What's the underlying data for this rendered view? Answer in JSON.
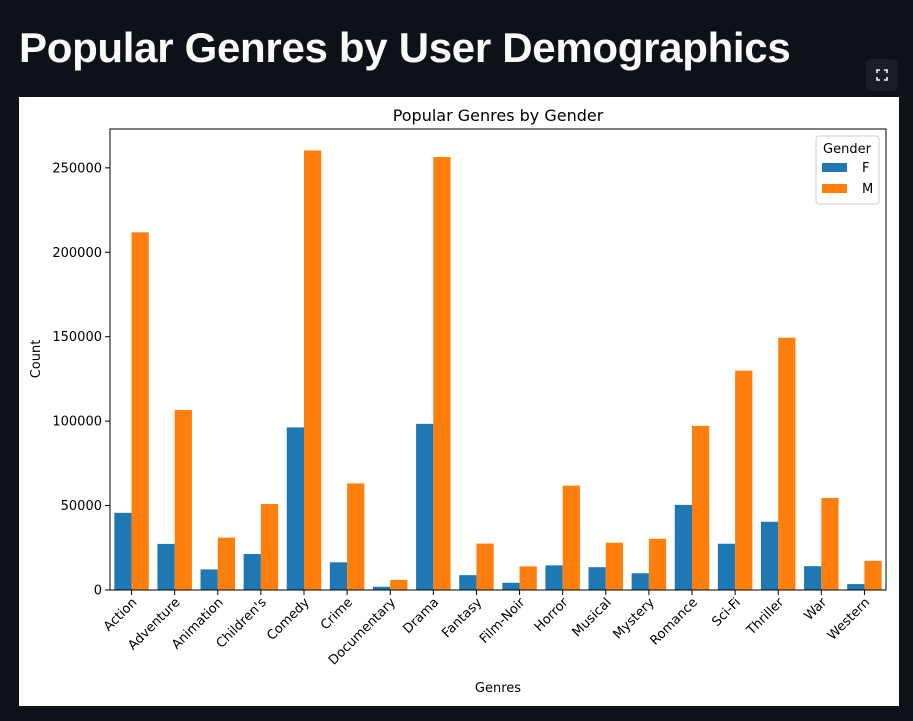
{
  "page": {
    "title": "Popular Genres by User Demographics"
  },
  "toolbar": {
    "fullscreen_icon": "fullscreen-icon"
  },
  "colors": {
    "background": "#0e1117",
    "F": "#1f77b4",
    "M": "#ff7f0e"
  },
  "chart_data": {
    "type": "bar",
    "title": "Popular Genres by Gender",
    "xlabel": "Genres",
    "ylabel": "Count",
    "ylim": [
      0,
      273000
    ],
    "yticks": [
      0,
      50000,
      100000,
      150000,
      200000,
      250000
    ],
    "grid": false,
    "legend": {
      "title": "Gender",
      "placement": "top-right"
    },
    "categories": [
      "Action",
      "Adventure",
      "Animation",
      "Children's",
      "Comedy",
      "Crime",
      "Documentary",
      "Drama",
      "Fantasy",
      "Film-Noir",
      "Horror",
      "Musical",
      "Mystery",
      "Romance",
      "Sci-Fi",
      "Thriller",
      "War",
      "Western"
    ],
    "series": [
      {
        "name": "F",
        "color": "#1f77b4",
        "values": [
          45700,
          27300,
          12200,
          21300,
          96300,
          16400,
          1900,
          98400,
          8800,
          4300,
          14600,
          13500,
          9900,
          50400,
          27400,
          40400,
          14100,
          3500
        ]
      },
      {
        "name": "M",
        "color": "#ff7f0e",
        "values": [
          211800,
          106600,
          31000,
          50900,
          260300,
          63100,
          6000,
          256400,
          27500,
          14000,
          61800,
          28000,
          30300,
          97200,
          129900,
          149400,
          54500,
          17300
        ]
      }
    ]
  }
}
